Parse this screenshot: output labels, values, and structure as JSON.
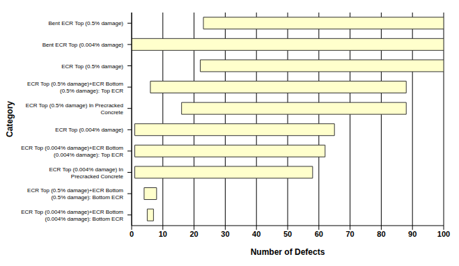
{
  "chart_data": {
    "type": "bar",
    "orientation": "horizontal",
    "x_label": "Number of Defects",
    "y_label": "Category",
    "categories": [
      "Bent ECR Top (0.5% damage)",
      "Bent ECR Top (0.004% damage)",
      "ECR Top (0.5% damage)",
      "ECR Top (0.5% damage)+ECR Bottom (0.5% damage): Top ECR",
      "ECR Top (0.5% damage) In Precracked Concrete",
      "ECR Top (0.004% damage)",
      "ECR Top (0.004% damage)+ECR Bottom (0.004% damage): Top ECR",
      "ECR Top (0.004% damage) In Precracked Concrete",
      "ECR Top (0.5% damage)+ECR Bottom (0.5% damage): Bottom ECR",
      "ECR Top (0.004% damage)+ECR Bottom (0.004% damage): Bottom ECR"
    ],
    "ranges": [
      [
        23,
        100
      ],
      [
        0,
        100
      ],
      [
        22,
        100
      ],
      [
        6,
        88
      ],
      [
        16,
        88
      ],
      [
        1,
        65
      ],
      [
        1,
        62
      ],
      [
        1,
        58
      ],
      [
        4,
        8
      ],
      [
        5,
        7
      ]
    ],
    "color": "#ffffcc",
    "xlim": [
      0,
      100
    ],
    "xticks": [
      0,
      10,
      20,
      30,
      40,
      50,
      60,
      70,
      80,
      90,
      100
    ],
    "grid": true
  }
}
